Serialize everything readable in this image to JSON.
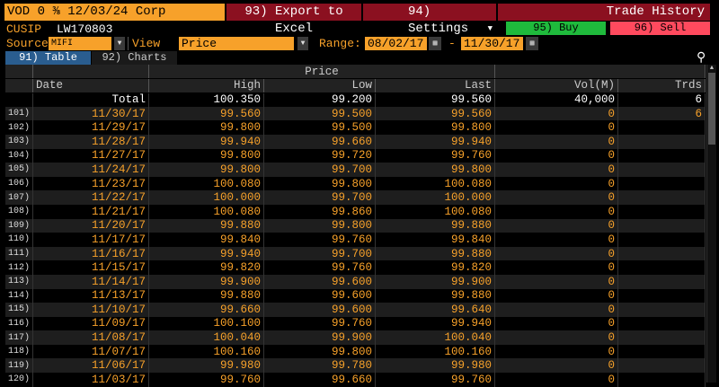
{
  "header": {
    "title": "VOD 0 ⅜ 12/03/24 Corp",
    "export": "93) Export to Excel",
    "settings": "94) Settings",
    "trade_history": "Trade History",
    "buy": "95) Buy",
    "sell": "96) Sell"
  },
  "info": {
    "cusip_label": "CUSIP",
    "cusip": "LW170803",
    "source_label": "Source",
    "source": "MIFI",
    "view_label": "View",
    "view": "Price",
    "range_label": "Range:",
    "from": "08/02/17",
    "dash": "-",
    "to": "11/30/17"
  },
  "tabs": [
    {
      "label": "91) Table",
      "active": true
    },
    {
      "label": "92) Charts",
      "active": false
    }
  ],
  "table": {
    "group": "Price",
    "columns": [
      "Date",
      "High",
      "Low",
      "Last",
      "Vol(M)",
      "Trds"
    ],
    "total": {
      "label": "Total",
      "high": "100.350",
      "low": "99.200",
      "last": "99.560",
      "vol": "40,000",
      "trds": "6"
    },
    "rows": [
      [
        "101)",
        "11/30/17",
        "99.560",
        "99.500",
        "99.560",
        "0",
        "6"
      ],
      [
        "102)",
        "11/29/17",
        "99.800",
        "99.500",
        "99.800",
        "0",
        ""
      ],
      [
        "103)",
        "11/28/17",
        "99.940",
        "99.660",
        "99.940",
        "0",
        ""
      ],
      [
        "104)",
        "11/27/17",
        "99.800",
        "99.720",
        "99.760",
        "0",
        ""
      ],
      [
        "105)",
        "11/24/17",
        "99.800",
        "99.700",
        "99.800",
        "0",
        ""
      ],
      [
        "106)",
        "11/23/17",
        "100.080",
        "99.800",
        "100.080",
        "0",
        ""
      ],
      [
        "107)",
        "11/22/17",
        "100.000",
        "99.700",
        "100.000",
        "0",
        ""
      ],
      [
        "108)",
        "11/21/17",
        "100.080",
        "99.860",
        "100.080",
        "0",
        ""
      ],
      [
        "109)",
        "11/20/17",
        "99.880",
        "99.800",
        "99.880",
        "0",
        ""
      ],
      [
        "110)",
        "11/17/17",
        "99.840",
        "99.760",
        "99.840",
        "0",
        ""
      ],
      [
        "111)",
        "11/16/17",
        "99.940",
        "99.700",
        "99.880",
        "0",
        ""
      ],
      [
        "112)",
        "11/15/17",
        "99.820",
        "99.760",
        "99.820",
        "0",
        ""
      ],
      [
        "113)",
        "11/14/17",
        "99.900",
        "99.600",
        "99.900",
        "0",
        ""
      ],
      [
        "114)",
        "11/13/17",
        "99.880",
        "99.600",
        "99.880",
        "0",
        ""
      ],
      [
        "115)",
        "11/10/17",
        "99.660",
        "99.600",
        "99.640",
        "0",
        ""
      ],
      [
        "116)",
        "11/09/17",
        "100.100",
        "99.760",
        "99.940",
        "0",
        ""
      ],
      [
        "117)",
        "11/08/17",
        "100.040",
        "99.900",
        "100.040",
        "0",
        ""
      ],
      [
        "118)",
        "11/07/17",
        "100.160",
        "99.800",
        "100.160",
        "0",
        ""
      ],
      [
        "119)",
        "11/06/17",
        "99.980",
        "99.780",
        "99.980",
        "0",
        ""
      ],
      [
        "120)",
        "11/03/17",
        "99.760",
        "99.660",
        "99.760",
        "0",
        ""
      ]
    ]
  },
  "colors": {
    "accent": "#f7a12a",
    "menu": "#8b1020",
    "buy": "#1fba3c",
    "sell": "#ff4a5e",
    "tab_active": "#2a5d8f"
  }
}
